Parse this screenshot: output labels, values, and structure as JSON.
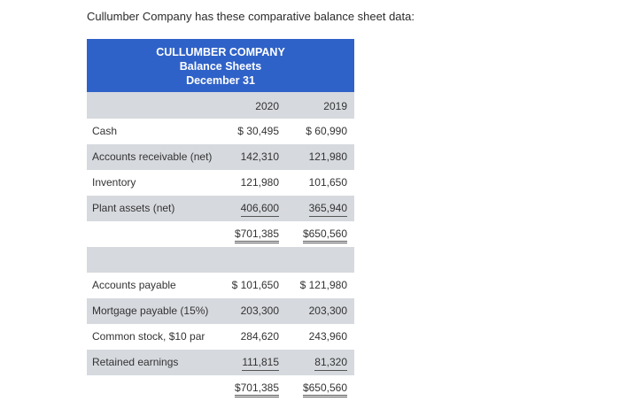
{
  "intro": "Cullumber Company has these comparative balance sheet data:",
  "header": {
    "company": "CULLUMBER COMPANY",
    "statement": "Balance Sheets",
    "date": "December 31"
  },
  "years": [
    "2020",
    "2019"
  ],
  "assets": [
    {
      "label": "Cash",
      "y2020": "$ 30,495",
      "y2019": "$ 60,990"
    },
    {
      "label": "Accounts receivable (net)",
      "y2020": "142,310",
      "y2019": "121,980"
    },
    {
      "label": "Inventory",
      "y2020": "121,980",
      "y2019": "101,650"
    },
    {
      "label": "Plant assets (net)",
      "y2020": "406,600",
      "y2019": "365,940"
    }
  ],
  "asset_total": {
    "y2020": "$701,385",
    "y2019": "$650,560"
  },
  "liabilities": [
    {
      "label": "Accounts payable",
      "y2020": "$ 101,650",
      "y2019": "$ 121,980"
    },
    {
      "label": "Mortgage payable (15%)",
      "y2020": "203,300",
      "y2019": "203,300"
    },
    {
      "label": "Common stock, $10 par",
      "y2020": "284,620",
      "y2019": "243,960"
    },
    {
      "label": "Retained earnings",
      "y2020": "111,815",
      "y2019": "81,320"
    }
  ],
  "liab_total": {
    "y2020": "$701,385",
    "y2019": "$650,560"
  }
}
